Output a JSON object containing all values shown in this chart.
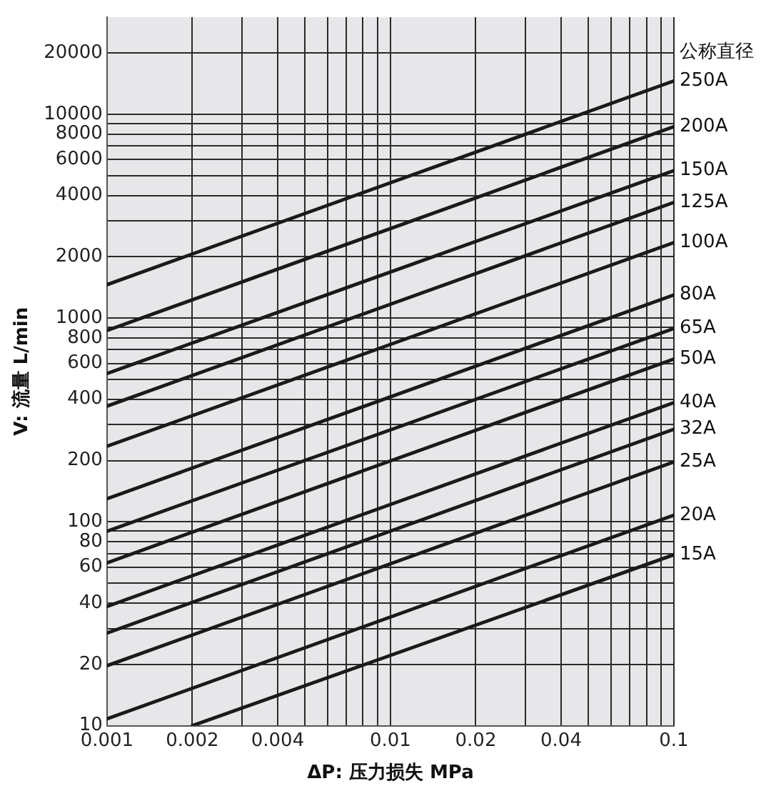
{
  "chart_data": {
    "type": "line",
    "xlabel": "ΔP: 压力损失 MPa",
    "ylabel": "V: 流量 L/min",
    "legend_title": "公称直径",
    "log": "xy",
    "grid": true,
    "marker": "none",
    "line_style": "solid",
    "xlim": [
      0.001,
      0.1
    ],
    "ylim": [
      10,
      30000
    ],
    "xticks": [
      0.001,
      0.002,
      {
        "value": 0.003,
        "label": null
      },
      0.004,
      {
        "value": 0.005,
        "label": null
      },
      {
        "value": 0.006,
        "label": null
      },
      {
        "value": 0.007,
        "label": null
      },
      {
        "value": 0.008,
        "label": null
      },
      {
        "value": 0.009,
        "label": null
      },
      0.01,
      0.02,
      {
        "value": 0.03,
        "label": null
      },
      0.04,
      {
        "value": 0.05,
        "label": null
      },
      {
        "value": 0.06,
        "label": null
      },
      {
        "value": 0.07,
        "label": null
      },
      {
        "value": 0.08,
        "label": null
      },
      {
        "value": 0.09,
        "label": null
      },
      0.1
    ],
    "yticks": [
      10,
      20,
      {
        "value": 30,
        "label": null
      },
      40,
      {
        "value": 50,
        "label": null
      },
      60,
      {
        "value": 70,
        "label": null
      },
      80,
      {
        "value": 90,
        "label": null
      },
      100,
      200,
      {
        "value": 300,
        "label": null
      },
      400,
      {
        "value": 500,
        "label": null
      },
      600,
      {
        "value": 700,
        "label": null
      },
      800,
      {
        "value": 900,
        "label": null
      },
      1000,
      2000,
      {
        "value": 3000,
        "label": null
      },
      4000,
      {
        "value": 5000,
        "label": null
      },
      6000,
      {
        "value": 7000,
        "label": null
      },
      8000,
      {
        "value": 9000,
        "label": null
      },
      10000,
      20000
    ],
    "series": [
      {
        "name": "250A",
        "color": "#1a1a1a",
        "x": [
          0.001,
          0.1
        ],
        "values": [
          1460,
          14600
        ]
      },
      {
        "name": "200A",
        "color": "#1a1a1a",
        "x": [
          0.001,
          0.1
        ],
        "values": [
          870,
          8700
        ]
      },
      {
        "name": "150A",
        "color": "#1a1a1a",
        "x": [
          0.001,
          0.1
        ],
        "values": [
          535,
          5300
        ]
      },
      {
        "name": "125A",
        "color": "#1a1a1a",
        "x": [
          0.001,
          0.1
        ],
        "values": [
          370,
          3700
        ]
      },
      {
        "name": "100A",
        "color": "#1a1a1a",
        "x": [
          0.001,
          0.1
        ],
        "values": [
          235,
          2350
        ]
      },
      {
        "name": "80A",
        "color": "#1a1a1a",
        "x": [
          0.001,
          0.1
        ],
        "values": [
          130,
          1300
        ]
      },
      {
        "name": "65A",
        "color": "#1a1a1a",
        "x": [
          0.001,
          0.1
        ],
        "values": [
          90,
          890
        ]
      },
      {
        "name": "50A",
        "color": "#1a1a1a",
        "x": [
          0.001,
          0.1
        ],
        "values": [
          63,
          630
        ]
      },
      {
        "name": "40A",
        "color": "#1a1a1a",
        "x": [
          0.001,
          0.1
        ],
        "values": [
          38.5,
          385
        ]
      },
      {
        "name": "32A",
        "color": "#1a1a1a",
        "x": [
          0.001,
          0.1
        ],
        "values": [
          28.5,
          285
        ]
      },
      {
        "name": "25A",
        "color": "#1a1a1a",
        "x": [
          0.001,
          0.1
        ],
        "values": [
          19.7,
          197
        ]
      },
      {
        "name": "20A",
        "color": "#1a1a1a",
        "x": [
          0.001,
          0.1
        ],
        "values": [
          10.8,
          108
        ]
      },
      {
        "name": "15A",
        "color": "#1a1a1a",
        "x": [
          0.002,
          0.1
        ],
        "values": [
          10,
          69
        ]
      }
    ]
  }
}
